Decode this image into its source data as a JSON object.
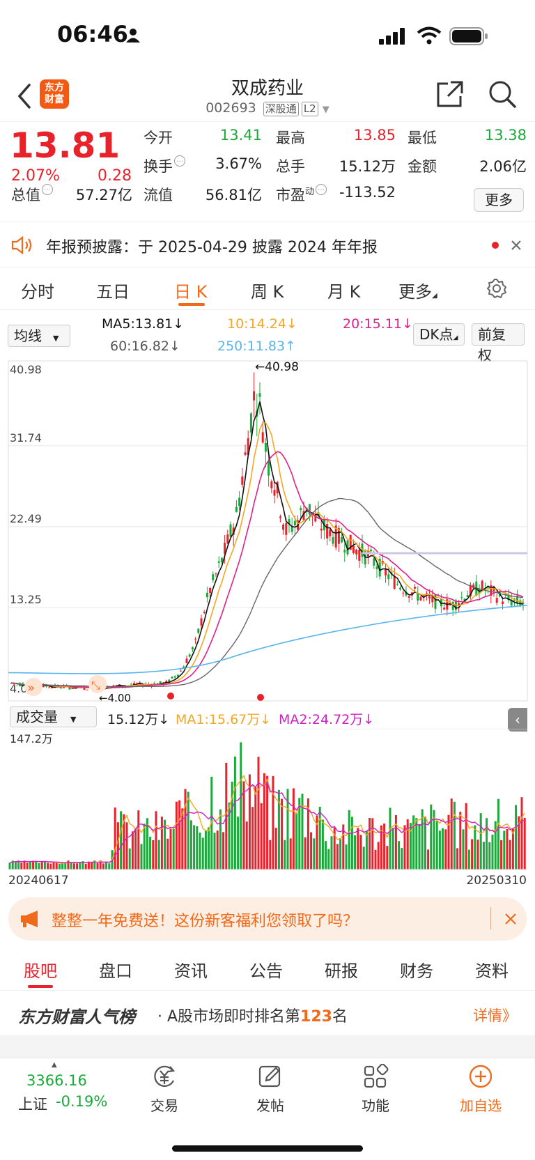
{
  "status": {
    "time": "06:46"
  },
  "nav": {
    "logo_line1": "东方",
    "logo_line2": "财富",
    "title": "双成药业",
    "code": "002693",
    "tag1": "深股通",
    "tag2": "L2"
  },
  "quote": {
    "price": "13.81",
    "pct": "2.07%",
    "change": "0.28",
    "open_label": "今开",
    "open": "13.41",
    "high_label": "最高",
    "high": "13.85",
    "low_label": "最低",
    "low": "13.38",
    "turnover_label": "换手",
    "turnover": "3.67%",
    "volume_label": "总手",
    "volume": "15.12万",
    "amount_label": "金额",
    "amount": "2.06亿",
    "mcap_label": "总值",
    "mcap": "57.27亿",
    "float_label": "流值",
    "float": "56.81亿",
    "pe_label": "市盈",
    "pe_sup": "动",
    "pe": "-113.52",
    "more": "更多"
  },
  "notice": {
    "text": "年报预披露：于 2025-04-29 披露 2024 年年报"
  },
  "tabs": [
    "分时",
    "五日",
    "日 K",
    "周 K",
    "月 K",
    "更多"
  ],
  "ma": {
    "selector": "均线",
    "ma5": "MA5:13.81↓",
    "ma10": "10:14.24↓",
    "ma20": "20:15.11↓",
    "ma60": "60:16.82↓",
    "ma250": "250:11.83↑",
    "dk": "DK点",
    "fq": "前复权"
  },
  "colors": {
    "up": "#e8222b",
    "down": "#1aa93a",
    "accent": "#ef6a1a",
    "ma5": "#111111",
    "ma10": "#f5a623",
    "ma20": "#e0208a",
    "ma60": "#666666",
    "ma250": "#5ab4ee"
  },
  "chart_data": {
    "type": "candlestick",
    "y_ticks": [
      "40.98",
      "31.74",
      "22.49",
      "13.25",
      "4.00"
    ],
    "high_marker": "←40.98",
    "low_marker": "←4.00",
    "x_start": "20240617",
    "x_end": "20250310",
    "ylim": [
      4.0,
      40.98
    ]
  },
  "volume": {
    "selector": "成交量",
    "vol": "15.12万↓",
    "ma1": "MA1:15.67万↓",
    "ma2": "MA2:24.72万↓",
    "max": "147.2万"
  },
  "promo": {
    "text": "整整一年免费送！这份新客福利您领取了吗？"
  },
  "subtabs": [
    "股吧",
    "盘口",
    "资讯",
    "公告",
    "研报",
    "财务",
    "资料"
  ],
  "rank": {
    "brand": "东方财富人气榜",
    "pre": "· A股市场即时排名第",
    "num": "123",
    "post": "名",
    "detail": "详情》"
  },
  "bottom": {
    "idx_val": "3366.16",
    "idx_name": "上证",
    "idx_pct": "-0.19%",
    "trade": "交易",
    "post": "发帖",
    "func": "功能",
    "add": "加自选"
  }
}
